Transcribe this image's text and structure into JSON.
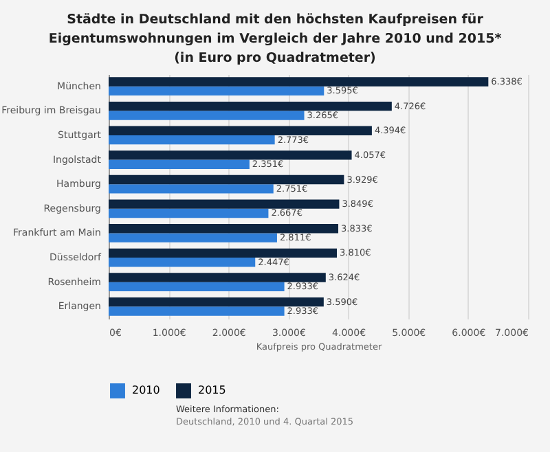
{
  "chart_data": {
    "type": "bar",
    "orientation": "horizontal",
    "title": "Städte in Deutschland mit den höchsten Kaufpreisen für Eigentumswohnungen im Vergleich der Jahre 2010 und 2015* (in Euro pro Quadratmeter)",
    "xlabel": "Kaufpreis pro Quadratmeter",
    "categories": [
      "München",
      "Freiburg im Breisgau",
      "Stuttgart",
      "Ingolstadt",
      "Hamburg",
      "Regensburg",
      "Frankfurt am Main",
      "Düsseldorf",
      "Rosenheim",
      "Erlangen"
    ],
    "series": [
      {
        "name": "2010",
        "color": "#2f7ed8",
        "values": [
          3595,
          3265,
          2773,
          2351,
          2751,
          2667,
          2811,
          2447,
          2933,
          2933
        ],
        "value_labels": [
          "3.595€",
          "3.265€",
          "2.773€",
          "2.351€",
          "2.751€",
          "2.667€",
          "2.811€",
          "2.447€",
          "2.933€",
          "2.933€"
        ]
      },
      {
        "name": "2015",
        "color": "#0d2541",
        "values": [
          6338,
          4726,
          4394,
          4057,
          3929,
          3849,
          3833,
          3810,
          3624,
          3590
        ],
        "value_labels": [
          "6.338€",
          "4.726€",
          "4.394€",
          "4.057€",
          "3.929€",
          "3.849€",
          "3.833€",
          "3.810€",
          "3.624€",
          "3.590€"
        ]
      }
    ],
    "xlim": [
      0,
      7000
    ],
    "xticks": [
      {
        "value": 0,
        "label": "0€"
      },
      {
        "value": 1000,
        "label": "1.000€"
      },
      {
        "value": 2000,
        "label": "2.000€"
      },
      {
        "value": 3000,
        "label": "3.000€"
      },
      {
        "value": 4000,
        "label": "4.000€"
      },
      {
        "value": 5000,
        "label": "5.000€"
      },
      {
        "value": 6000,
        "label": "6.000€"
      },
      {
        "value": 7000,
        "label": "7.000€"
      }
    ],
    "grid": "x",
    "legend": "bottom",
    "annotations": [
      "Weitere Informationen:",
      "Deutschland, 2010 und 4. Quartal 2015"
    ]
  }
}
